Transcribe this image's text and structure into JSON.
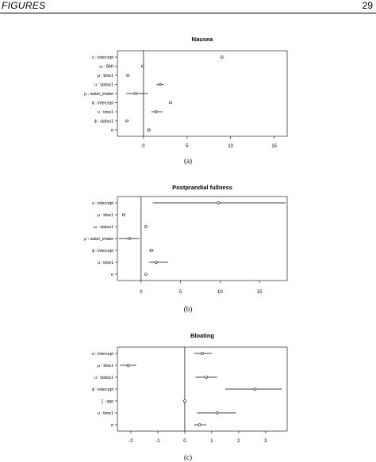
{
  "header": {
    "section": "FIGURES",
    "page_number": "29"
  },
  "captions": [
    "(a)",
    "(b)",
    "(c)"
  ],
  "chart_data": [
    {
      "type": "forest",
      "title": "Nausea",
      "xlim": [
        -3,
        16.5
      ],
      "xticks": [
        0,
        5,
        10,
        15
      ],
      "reference_line": 0,
      "rows": [
        {
          "label": "u : intercept",
          "estimate": 9.0,
          "lower": 9.0,
          "upper": 9.0
        },
        {
          "label": "ω : BMI",
          "estimate": -0.1,
          "lower": -0.1,
          "upper": -0.1
        },
        {
          "label": "μ : time1",
          "estimate": -1.8,
          "lower": -1.8,
          "upper": -1.8
        },
        {
          "label": "u : status1",
          "estimate": 1.9,
          "lower": 1.5,
          "upper": 2.3
        },
        {
          "label": "μ : water_intake",
          "estimate": -0.9,
          "lower": -2.0,
          "upper": 0.5
        },
        {
          "label": "ϕ : intercept",
          "estimate": 3.1,
          "lower": 3.1,
          "upper": 3.1
        },
        {
          "label": "υ : time1",
          "estimate": 1.4,
          "lower": 0.9,
          "upper": 2.2
        },
        {
          "label": "ϕ : status1",
          "estimate": -1.9,
          "lower": -1.9,
          "upper": -1.9
        },
        {
          "label": "σ",
          "estimate": 0.6,
          "lower": 0.4,
          "upper": 0.8
        }
      ]
    },
    {
      "type": "forest",
      "title": "Postprandial fullness",
      "xlim": [
        -3,
        18.5
      ],
      "xticks": [
        0,
        5,
        10,
        15
      ],
      "reference_line": 0,
      "rows": [
        {
          "label": "u : intercept",
          "estimate": 9.8,
          "lower": 1.5,
          "upper": 18.3
        },
        {
          "label": "μ : time1",
          "estimate": -2.2,
          "lower": -2.4,
          "upper": -2.0
        },
        {
          "label": "ω : status1",
          "estimate": 0.6,
          "lower": 0.6,
          "upper": 0.6
        },
        {
          "label": "μ : water_intake",
          "estimate": -1.5,
          "lower": -2.8,
          "upper": -0.2
        },
        {
          "label": "ϕ : intercept",
          "estimate": 1.3,
          "lower": 1.0,
          "upper": 1.6
        },
        {
          "label": "υ : time1",
          "estimate": 1.9,
          "lower": 1.0,
          "upper": 3.4
        },
        {
          "label": "σ",
          "estimate": 0.6,
          "lower": 0.5,
          "upper": 0.7
        }
      ]
    },
    {
      "type": "forest",
      "title": "Bloating",
      "xlim": [
        -2.5,
        3.8
      ],
      "xticks": [
        -2,
        -1,
        0,
        1,
        2,
        3
      ],
      "reference_line": 0,
      "rows": [
        {
          "label": "u : intercept",
          "estimate": 0.65,
          "lower": 0.35,
          "upper": 1.0
        },
        {
          "label": "μ : time1",
          "estimate": -2.1,
          "lower": -2.4,
          "upper": -1.8
        },
        {
          "label": "u : status1",
          "estimate": 0.8,
          "lower": 0.4,
          "upper": 1.2
        },
        {
          "label": "ϕ : intercept",
          "estimate": 2.6,
          "lower": 1.5,
          "upper": 3.6
        },
        {
          "label": "ζ : age",
          "estimate": 0.0,
          "lower": 0.0,
          "upper": 0.0
        },
        {
          "label": "υ : time1",
          "estimate": 1.2,
          "lower": 0.45,
          "upper": 1.9
        },
        {
          "label": "σ",
          "estimate": 0.55,
          "lower": 0.35,
          "upper": 0.8
        }
      ]
    }
  ]
}
